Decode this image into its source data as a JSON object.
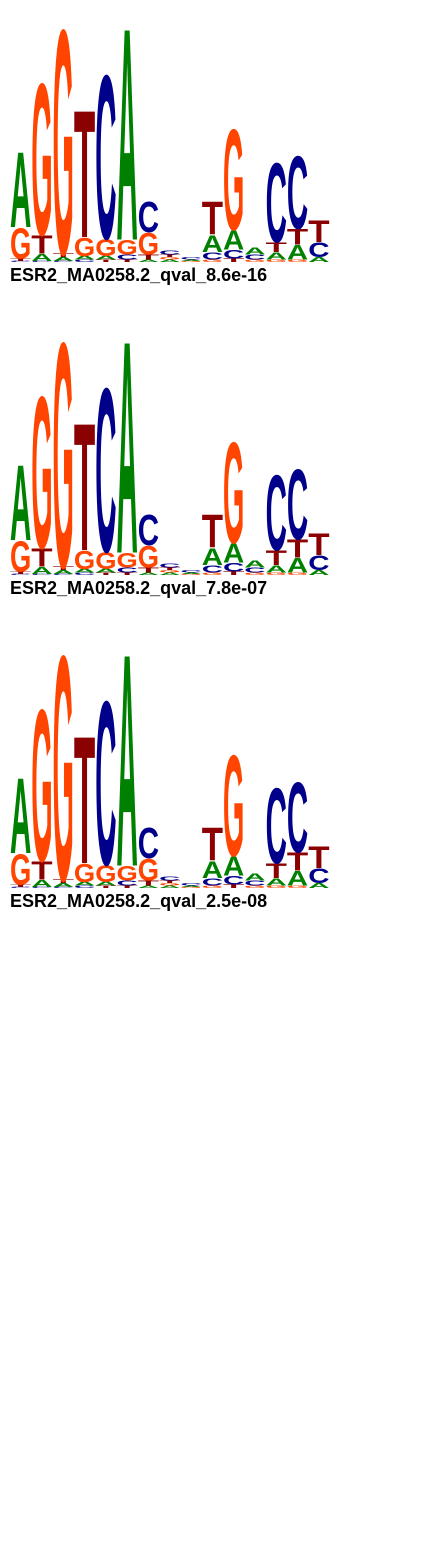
{
  "logos": [
    {
      "label": "ESR2_MA0258.2_qval_8.6e-16",
      "columns": [
        [
          [
            "C",
            0.01
          ],
          [
            "T",
            0.02
          ],
          [
            "G",
            0.25
          ],
          [
            "A",
            0.62
          ]
        ],
        [
          [
            "C",
            0.01
          ],
          [
            "A",
            0.06
          ],
          [
            "T",
            0.15
          ],
          [
            "G",
            1.25
          ]
        ],
        [
          [
            "C",
            0.01
          ],
          [
            "A",
            0.03
          ],
          [
            "T",
            0.03
          ],
          [
            "G",
            1.85
          ]
        ],
        [
          [
            "C",
            0.02
          ],
          [
            "A",
            0.03
          ],
          [
            "G",
            0.15
          ],
          [
            "T",
            1.05
          ]
        ],
        [
          [
            "T",
            0.02
          ],
          [
            "A",
            0.03
          ],
          [
            "G",
            0.14
          ],
          [
            "C",
            1.35
          ]
        ],
        [
          [
            "T",
            0.02
          ],
          [
            "C",
            0.04
          ],
          [
            "G",
            0.12
          ],
          [
            "A",
            1.75
          ]
        ],
        [
          [
            "A",
            0.02
          ],
          [
            "T",
            0.04
          ],
          [
            "G",
            0.18
          ],
          [
            "C",
            0.25
          ]
        ],
        [
          [
            "A",
            0.02
          ],
          [
            "G",
            0.02
          ],
          [
            "T",
            0.02
          ],
          [
            "C",
            0.03
          ]
        ],
        [
          [
            "G",
            0.01
          ],
          [
            "A",
            0.01
          ],
          [
            "C",
            0.02
          ]
        ],
        [
          [
            "G",
            0.02
          ],
          [
            "C",
            0.06
          ],
          [
            "A",
            0.14
          ],
          [
            "T",
            0.27
          ]
        ],
        [
          [
            "T",
            0.03
          ],
          [
            "C",
            0.07
          ],
          [
            "A",
            0.16
          ],
          [
            "G",
            0.83
          ]
        ],
        [
          [
            "G",
            0.02
          ],
          [
            "C",
            0.04
          ],
          [
            "A",
            0.06
          ]
        ],
        [
          [
            "G",
            0.02
          ],
          [
            "A",
            0.06
          ],
          [
            "T",
            0.08
          ],
          [
            "C",
            0.65
          ]
        ],
        [
          [
            "G",
            0.02
          ],
          [
            "A",
            0.12
          ],
          [
            "T",
            0.13
          ],
          [
            "C",
            0.6
          ]
        ],
        [
          [
            "A",
            0.04
          ],
          [
            "C",
            0.12
          ],
          [
            "T",
            0.18
          ]
        ]
      ]
    },
    {
      "label": "ESR2_MA0258.2_qval_7.8e-07",
      "columns": [
        [
          [
            "C",
            0.01
          ],
          [
            "T",
            0.02
          ],
          [
            "G",
            0.25
          ],
          [
            "A",
            0.62
          ]
        ],
        [
          [
            "C",
            0.01
          ],
          [
            "A",
            0.06
          ],
          [
            "T",
            0.15
          ],
          [
            "G",
            1.25
          ]
        ],
        [
          [
            "C",
            0.01
          ],
          [
            "A",
            0.03
          ],
          [
            "T",
            0.03
          ],
          [
            "G",
            1.85
          ]
        ],
        [
          [
            "C",
            0.02
          ],
          [
            "A",
            0.03
          ],
          [
            "G",
            0.15
          ],
          [
            "T",
            1.05
          ]
        ],
        [
          [
            "T",
            0.02
          ],
          [
            "A",
            0.03
          ],
          [
            "G",
            0.14
          ],
          [
            "C",
            1.35
          ]
        ],
        [
          [
            "T",
            0.02
          ],
          [
            "C",
            0.04
          ],
          [
            "G",
            0.12
          ],
          [
            "A",
            1.75
          ]
        ],
        [
          [
            "A",
            0.02
          ],
          [
            "T",
            0.04
          ],
          [
            "G",
            0.18
          ],
          [
            "C",
            0.25
          ]
        ],
        [
          [
            "A",
            0.02
          ],
          [
            "G",
            0.02
          ],
          [
            "T",
            0.02
          ],
          [
            "C",
            0.03
          ]
        ],
        [
          [
            "G",
            0.01
          ],
          [
            "A",
            0.01
          ],
          [
            "C",
            0.02
          ]
        ],
        [
          [
            "G",
            0.02
          ],
          [
            "C",
            0.06
          ],
          [
            "A",
            0.14
          ],
          [
            "T",
            0.27
          ]
        ],
        [
          [
            "T",
            0.03
          ],
          [
            "C",
            0.07
          ],
          [
            "A",
            0.16
          ],
          [
            "G",
            0.83
          ]
        ],
        [
          [
            "G",
            0.02
          ],
          [
            "C",
            0.04
          ],
          [
            "A",
            0.06
          ]
        ],
        [
          [
            "G",
            0.02
          ],
          [
            "A",
            0.06
          ],
          [
            "T",
            0.12
          ],
          [
            "C",
            0.62
          ]
        ],
        [
          [
            "G",
            0.02
          ],
          [
            "A",
            0.12
          ],
          [
            "T",
            0.15
          ],
          [
            "C",
            0.58
          ]
        ],
        [
          [
            "A",
            0.04
          ],
          [
            "C",
            0.12
          ],
          [
            "T",
            0.18
          ]
        ]
      ]
    },
    {
      "label": "ESR2_MA0258.2_qval_2.5e-08",
      "columns": [
        [
          [
            "C",
            0.01
          ],
          [
            "T",
            0.02
          ],
          [
            "G",
            0.25
          ],
          [
            "A",
            0.62
          ]
        ],
        [
          [
            "C",
            0.01
          ],
          [
            "A",
            0.06
          ],
          [
            "T",
            0.15
          ],
          [
            "G",
            1.25
          ]
        ],
        [
          [
            "C",
            0.01
          ],
          [
            "A",
            0.03
          ],
          [
            "T",
            0.03
          ],
          [
            "G",
            1.85
          ]
        ],
        [
          [
            "C",
            0.02
          ],
          [
            "A",
            0.03
          ],
          [
            "G",
            0.15
          ],
          [
            "T",
            1.05
          ]
        ],
        [
          [
            "T",
            0.02
          ],
          [
            "A",
            0.03
          ],
          [
            "G",
            0.14
          ],
          [
            "C",
            1.35
          ]
        ],
        [
          [
            "T",
            0.02
          ],
          [
            "C",
            0.04
          ],
          [
            "G",
            0.12
          ],
          [
            "A",
            1.75
          ]
        ],
        [
          [
            "A",
            0.02
          ],
          [
            "T",
            0.04
          ],
          [
            "G",
            0.18
          ],
          [
            "C",
            0.25
          ]
        ],
        [
          [
            "A",
            0.02
          ],
          [
            "G",
            0.02
          ],
          [
            "T",
            0.02
          ],
          [
            "C",
            0.03
          ]
        ],
        [
          [
            "G",
            0.01
          ],
          [
            "A",
            0.01
          ],
          [
            "C",
            0.02
          ]
        ],
        [
          [
            "G",
            0.02
          ],
          [
            "C",
            0.06
          ],
          [
            "A",
            0.14
          ],
          [
            "T",
            0.27
          ]
        ],
        [
          [
            "T",
            0.03
          ],
          [
            "C",
            0.07
          ],
          [
            "A",
            0.16
          ],
          [
            "G",
            0.83
          ]
        ],
        [
          [
            "G",
            0.02
          ],
          [
            "C",
            0.04
          ],
          [
            "A",
            0.06
          ]
        ],
        [
          [
            "G",
            0.02
          ],
          [
            "A",
            0.06
          ],
          [
            "T",
            0.12
          ],
          [
            "C",
            0.62
          ]
        ],
        [
          [
            "G",
            0.02
          ],
          [
            "A",
            0.12
          ],
          [
            "T",
            0.15
          ],
          [
            "C",
            0.58
          ]
        ],
        [
          [
            "A",
            0.04
          ],
          [
            "C",
            0.12
          ],
          [
            "T",
            0.18
          ]
        ]
      ]
    }
  ]
}
